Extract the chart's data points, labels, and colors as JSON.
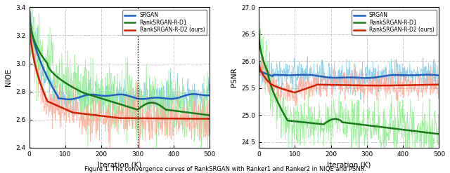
{
  "left_plot": {
    "xlabel": "Iteration (K)",
    "ylabel": "NIQE",
    "xlim": [
      0,
      500
    ],
    "ylim": [
      2.4,
      3.4
    ],
    "yticks": [
      2.4,
      2.6,
      2.8,
      3.0,
      3.2,
      3.4
    ],
    "xticks": [
      0,
      100,
      200,
      300,
      400,
      500
    ],
    "vline": 300
  },
  "right_plot": {
    "xlabel": "Iteration (K)",
    "ylabel": "PSNR",
    "xlim": [
      0,
      500
    ],
    "ylim": [
      24.4,
      27.0
    ],
    "yticks": [
      24.5,
      25.0,
      25.5,
      26.0,
      26.5,
      27.0
    ],
    "xticks": [
      0,
      100,
      200,
      300,
      400,
      500
    ],
    "vline": null
  },
  "figure_caption": "Figure 1. The convergence curves of RankSRGAN with Ranker1 and Ranker2 in NIQE and PSNR.",
  "legend_labels": [
    "SRGAN",
    "RankSRGAN-R-D1",
    "RankSRGAN-R-D2 (ours)"
  ],
  "colors_raw": [
    "#7ec8e3",
    "#90ee90",
    "#ffaa99"
  ],
  "colors_smooth": [
    "#1f5fbd",
    "#1a7a1a",
    "#cc2200"
  ],
  "raw_lw": 0.6,
  "smooth_lw": 1.8,
  "raw_alpha": 0.85,
  "smooth_alpha": 1.0,
  "noise_scale_niqe": [
    0.055,
    0.13,
    0.08
  ],
  "noise_scale_psnr": [
    0.14,
    0.25,
    0.13
  ]
}
